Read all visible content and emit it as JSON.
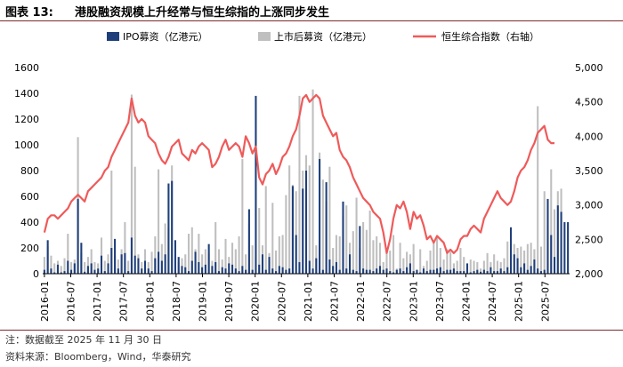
{
  "header": {
    "label": "图表 13:",
    "title": "港股融资规模上升经常与恒生综指的上涨同步发生"
  },
  "footer": {
    "note": "注：数据截至 2025 年 11 月 30 日",
    "source": "资料来源：Bloomberg，Wind，华泰研究"
  },
  "colors": {
    "ipo": "#1f3f7a",
    "post_ipo": "#bfbfbf",
    "index_line": "#ef5a5a",
    "rule": "#7a2b2b"
  },
  "chart_data": {
    "type": "bar",
    "legend_position": "top",
    "grid": false,
    "x_ticks": [
      "2016-01",
      "2016-07",
      "2017-01",
      "2017-07",
      "2018-01",
      "2018-07",
      "2019-01",
      "2019-07",
      "2020-01",
      "2020-07",
      "2021-01",
      "2021-07",
      "2022-01",
      "2022-07",
      "2023-01",
      "2023-07",
      "2024-01",
      "2024-07",
      "2025-01",
      "2025-07"
    ],
    "y_left": {
      "ticks": [
        "0",
        "200",
        "400",
        "600",
        "800",
        "1000",
        "1200",
        "1400",
        "1600"
      ],
      "range": [
        0,
        1600
      ]
    },
    "y_right": {
      "ticks": [
        "2,000",
        "2,500",
        "3,000",
        "3,500",
        "4,000",
        "4,500",
        "5,000"
      ],
      "range": [
        2000,
        5000
      ]
    },
    "series": [
      {
        "name": "IPO募资（亿港元）",
        "kind": "bar",
        "axis": "left",
        "values": [
          30,
          260,
          40,
          10,
          70,
          10,
          20,
          100,
          30,
          80,
          580,
          240,
          15,
          60,
          80,
          30,
          40,
          140,
          20,
          80,
          200,
          270,
          40,
          150,
          160,
          20,
          280,
          140,
          120,
          40,
          100,
          40,
          20,
          120,
          170,
          100,
          150,
          700,
          720,
          260,
          130,
          60,
          50,
          20,
          100,
          170,
          90,
          50,
          70,
          230,
          60,
          90,
          20,
          50,
          40,
          80,
          70,
          40,
          20,
          60,
          30,
          500,
          30,
          1380,
          70,
          150,
          30,
          130,
          40,
          20,
          60,
          50,
          30,
          40,
          680,
          300,
          90,
          660,
          800,
          100,
          40,
          120,
          890,
          30,
          710,
          110,
          60,
          90,
          30,
          560,
          40,
          150,
          30,
          20,
          370,
          40,
          30,
          30,
          20,
          40,
          60,
          30,
          40,
          20,
          10,
          30,
          40,
          20,
          50,
          80,
          20,
          30,
          10,
          40,
          20,
          30,
          30,
          40,
          50,
          20,
          30,
          30,
          40,
          20,
          20,
          20,
          80,
          10,
          20,
          30,
          15,
          30,
          20,
          50,
          20,
          20,
          40,
          20,
          50,
          360,
          150,
          120,
          50,
          80,
          30,
          60,
          110,
          40,
          20,
          30,
          580,
          300,
          130,
          530,
          480,
          400,
          400
        ]
      },
      {
        "name": "上市后募资（亿港元）",
        "kind": "bar",
        "axis": "left",
        "values": [
          130,
          210,
          140,
          80,
          100,
          60,
          120,
          310,
          90,
          110,
          1060,
          160,
          90,
          130,
          190,
          90,
          80,
          280,
          100,
          150,
          800,
          140,
          110,
          190,
          400,
          100,
          1390,
          830,
          150,
          90,
          190,
          90,
          170,
          290,
          810,
          230,
          390,
          360,
          840,
          150,
          90,
          120,
          150,
          310,
          360,
          190,
          310,
          150,
          190,
          160,
          100,
          400,
          190,
          110,
          270,
          130,
          240,
          190,
          290,
          890,
          150,
          390,
          220,
          130,
          510,
          220,
          680,
          160,
          550,
          180,
          290,
          300,
          610,
          840,
          690,
          640,
          1380,
          800,
          920,
          840,
          1430,
          220,
          940,
          730,
          560,
          830,
          200,
          300,
          290,
          450,
          530,
          240,
          330,
          590,
          200,
          400,
          340,
          490,
          260,
          290,
          240,
          90,
          190,
          180,
          300,
          40,
          240,
          120,
          170,
          150,
          230,
          30,
          190,
          60,
          100,
          180,
          240,
          290,
          200,
          110,
          190,
          170,
          80,
          100,
          200,
          130,
          30,
          110,
          100,
          90,
          40,
          100,
          160,
          90,
          150,
          100,
          90,
          120,
          250,
          150,
          230,
          200,
          210,
          180,
          230,
          240,
          190,
          1300,
          210,
          640,
          380,
          810,
          500,
          640,
          660
        ]
      },
      {
        "name": "恒生综合指数（右轴）",
        "kind": "line",
        "axis": "right",
        "values": [
          2600,
          2800,
          2850,
          2850,
          2800,
          2850,
          2900,
          2950,
          3050,
          3100,
          3150,
          3100,
          3050,
          3200,
          3250,
          3300,
          3350,
          3400,
          3500,
          3550,
          3700,
          3800,
          3900,
          4000,
          4100,
          4200,
          4550,
          4300,
          4200,
          4250,
          4200,
          4000,
          3950,
          3900,
          3750,
          3650,
          3600,
          3700,
          3850,
          3900,
          3950,
          3750,
          3700,
          3650,
          3800,
          3750,
          3850,
          3900,
          3850,
          3800,
          3550,
          3600,
          3700,
          3850,
          3950,
          3800,
          3850,
          3900,
          3850,
          3700,
          4000,
          3900,
          3750,
          3850,
          3400,
          3300,
          3450,
          3500,
          3600,
          3450,
          3550,
          3700,
          3750,
          3850,
          4000,
          4100,
          4300,
          4550,
          4600,
          4500,
          4550,
          4600,
          4550,
          4300,
          4200,
          4100,
          4000,
          4050,
          3800,
          3700,
          3650,
          3550,
          3400,
          3300,
          3200,
          3100,
          3050,
          3000,
          2900,
          2850,
          2800,
          2600,
          2300,
          2500,
          2800,
          3000,
          2950,
          3050,
          2900,
          2650,
          2900,
          2800,
          2850,
          2700,
          2500,
          2550,
          2450,
          2550,
          2500,
          2450,
          2300,
          2350,
          2300,
          2350,
          2500,
          2550,
          2550,
          2650,
          2700,
          2650,
          2600,
          2800,
          2900,
          3000,
          3100,
          3200,
          3100,
          3050,
          3000,
          3050,
          3200,
          3400,
          3500,
          3550,
          3650,
          3800,
          3900,
          4050,
          4100,
          4150,
          3950,
          3900,
          3900
        ]
      }
    ]
  }
}
